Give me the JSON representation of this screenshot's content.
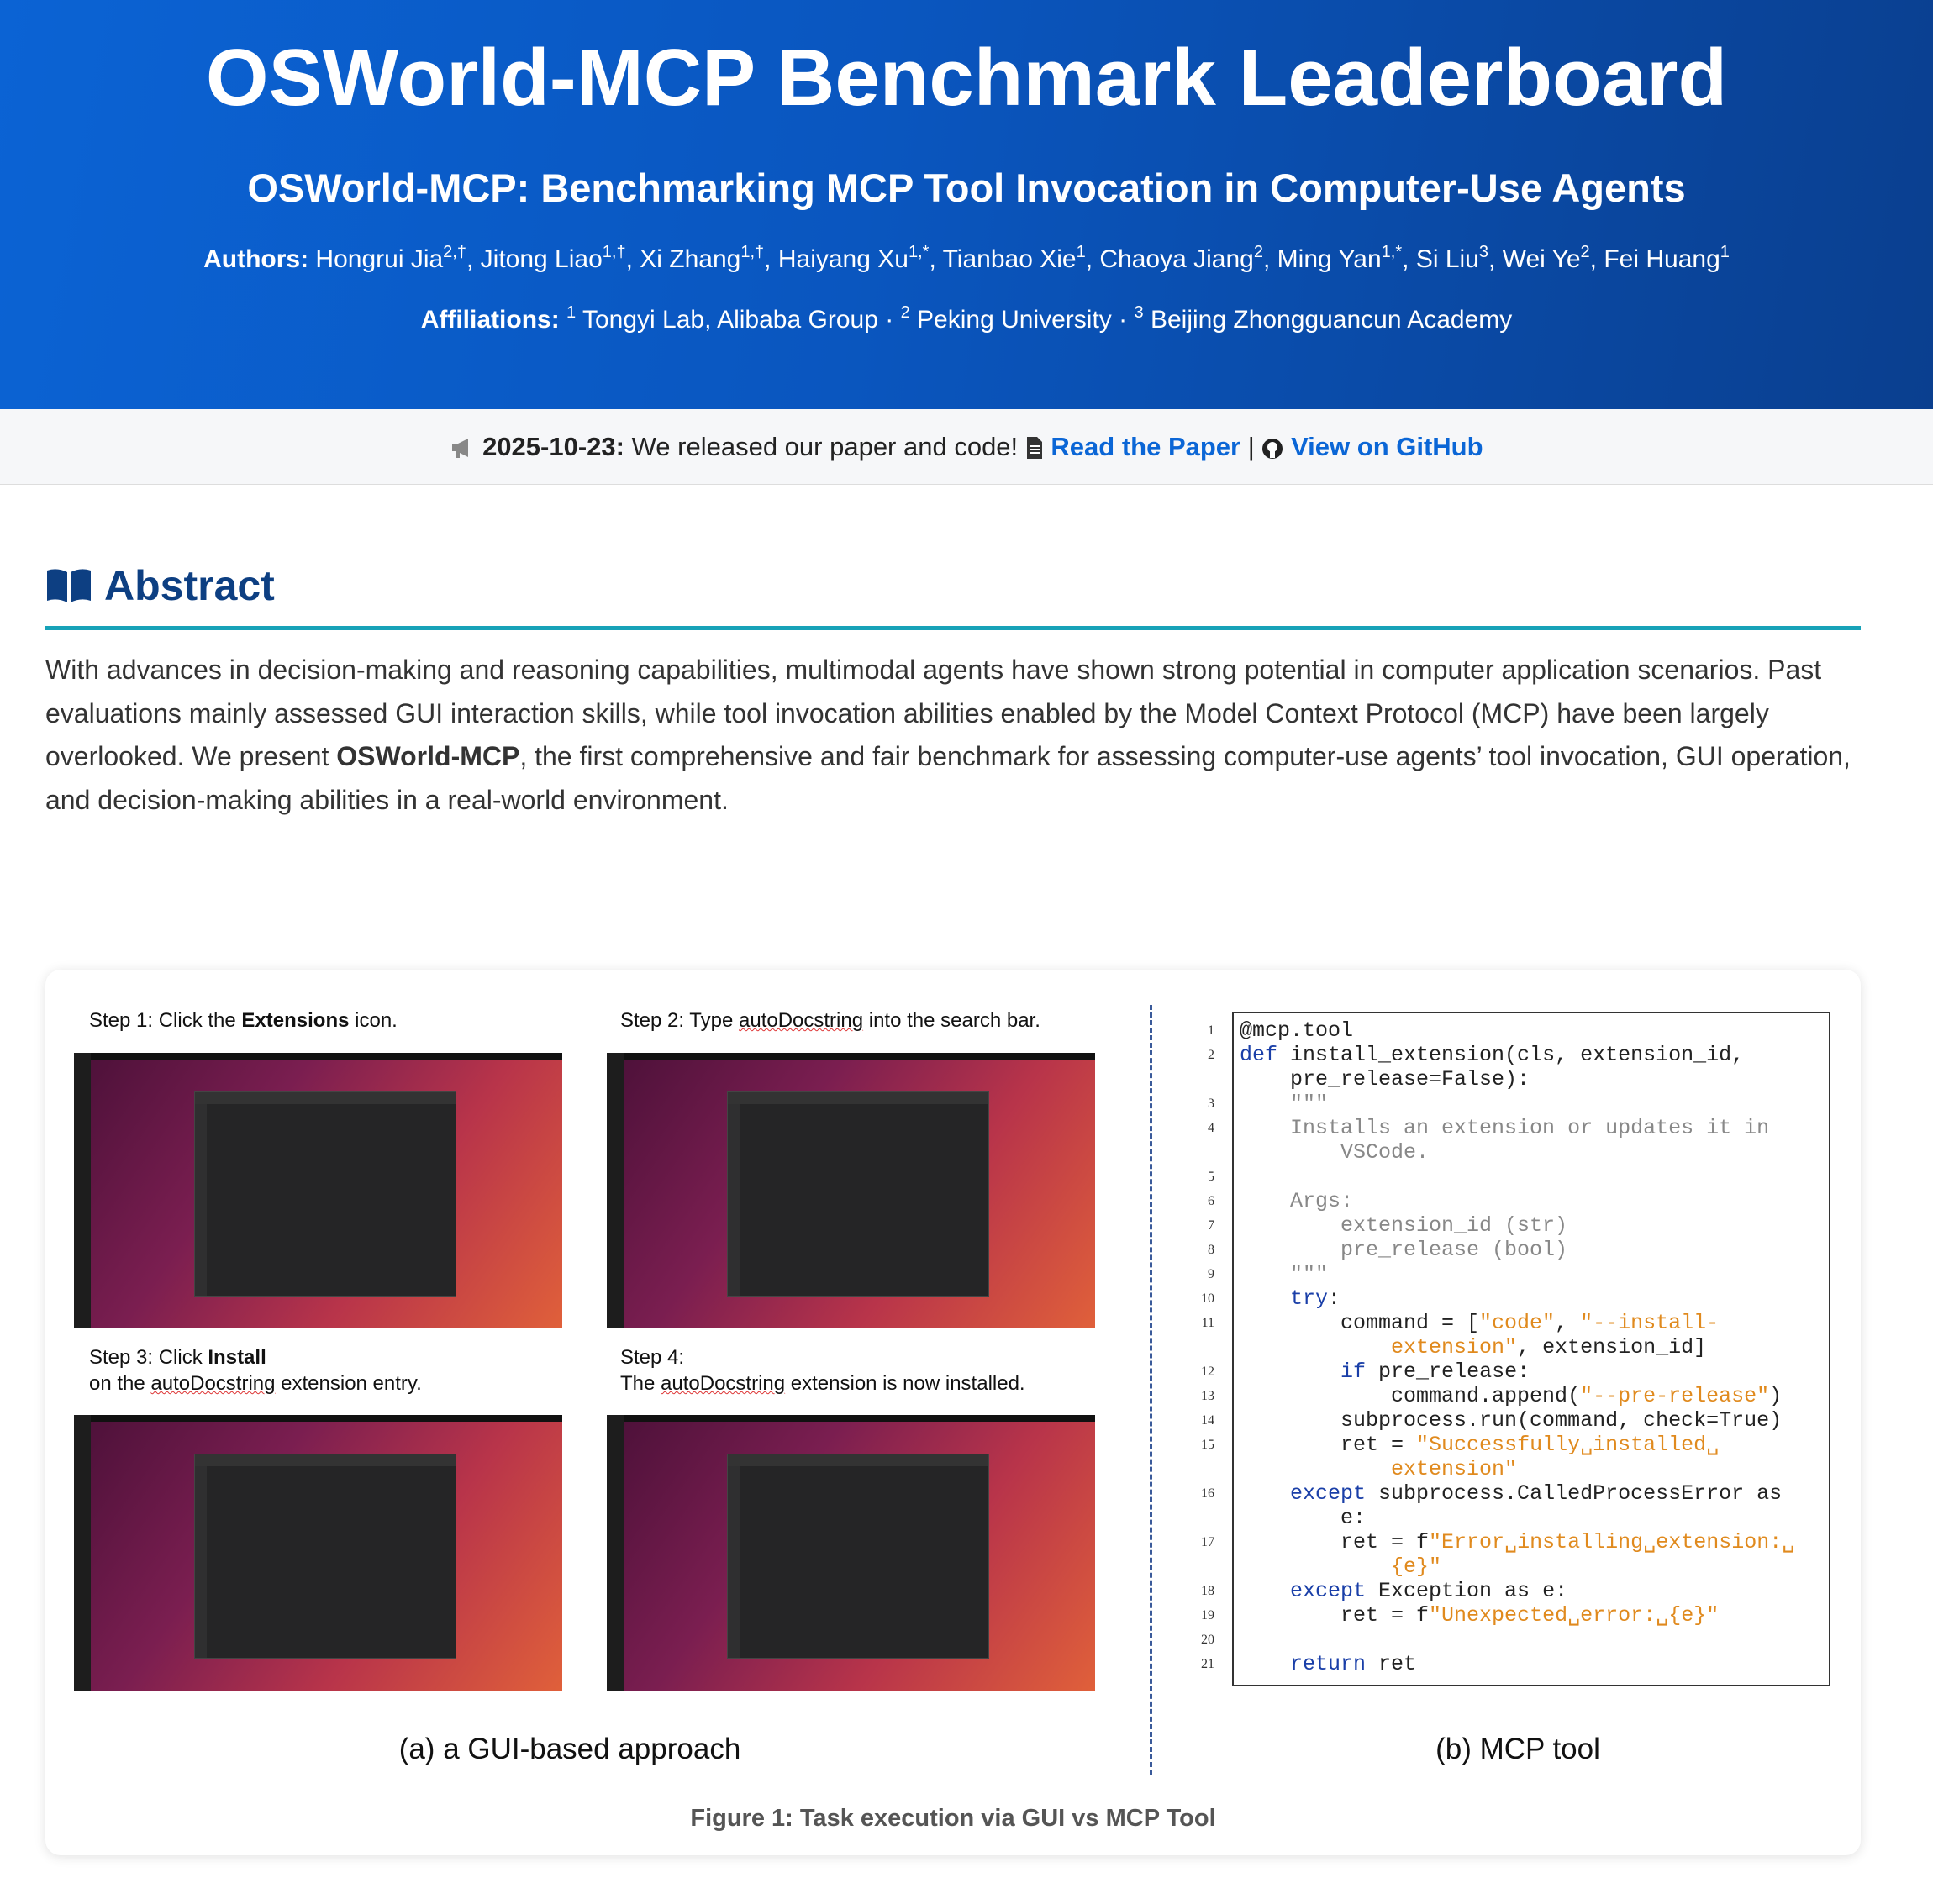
{
  "header": {
    "title": "OSWorld-MCP Benchmark Leaderboard",
    "subtitle": "OSWorld-MCP: Benchmarking MCP Tool Invocation in Computer-Use Agents",
    "authors": {
      "label": "Authors:",
      "separator": ",",
      "items": [
        {
          "name": "Hongrui Jia",
          "sup": "2,†"
        },
        {
          "name": "Jitong Liao",
          "sup": "1,†"
        },
        {
          "name": "Xi Zhang",
          "sup": "1,†"
        },
        {
          "name": "Haiyang Xu",
          "sup": "1,*"
        },
        {
          "name": "Tianbao Xie",
          "sup": "1"
        },
        {
          "name": "Chaoya Jiang",
          "sup": "2"
        },
        {
          "name": "Ming Yan",
          "sup": "1,*"
        },
        {
          "name": "Si Liu",
          "sup": "3"
        },
        {
          "name": "Wei Ye",
          "sup": "2"
        },
        {
          "name": "Fei Huang",
          "sup": "1"
        }
      ]
    },
    "affiliations": {
      "label": "Affiliations:",
      "separator": "·",
      "items": [
        {
          "sup": "1",
          "name": "Tongyi Lab, Alibaba Group"
        },
        {
          "sup": "2",
          "name": "Peking University"
        },
        {
          "sup": "3",
          "name": "Beijing Zhongguancun Academy"
        }
      ]
    }
  },
  "news": {
    "date": "2025-10-23:",
    "text": "We released our paper and code!",
    "paper_link": "Read the Paper",
    "separator": "|",
    "github_link": "View on GitHub"
  },
  "abstract": {
    "heading": "Abstract",
    "parts": [
      {
        "t": "With advances in decision-making and reasoning capabilities, multimodal agents have shown strong potential in computer application scenarios. Past evaluations mainly assessed GUI interaction skills, while tool invocation abilities enabled by the Model Context Protocol (MCP) have been largely overlooked. We present "
      },
      {
        "t": "OSWorld-MCP",
        "s": "b"
      },
      {
        "t": ", the first comprehensive and fair benchmark for assessing computer-use agents’ tool invocation, GUI operation, and decision-making abilities in a real-world environment."
      }
    ]
  },
  "figure": {
    "steps": [
      {
        "lines": [
          [
            {
              "t": "Step 1: Click the "
            },
            {
              "t": "Extensions",
              "s": "b"
            },
            {
              "t": " icon."
            }
          ]
        ]
      },
      {
        "lines": [
          [
            {
              "t": "Step 2: Type "
            },
            {
              "t": "autoDocstring",
              "s": "u"
            },
            {
              "t": " into the search bar."
            }
          ]
        ]
      },
      {
        "lines": [
          [
            {
              "t": "Step 3: Click "
            },
            {
              "t": "Install",
              "s": "b"
            }
          ],
          [
            {
              "t": "on the "
            },
            {
              "t": "autoDocstring",
              "s": "u"
            },
            {
              "t": " extension entry."
            }
          ]
        ]
      },
      {
        "lines": [
          [
            {
              "t": "Step 4:"
            }
          ],
          [
            {
              "t": "The "
            },
            {
              "t": "autoDocstring",
              "s": "u"
            },
            {
              "t": " extension is now installed."
            }
          ]
        ]
      }
    ],
    "code_rows": [
      {
        "n": 1,
        "segs": [
          {
            "t": "@mcp.tool"
          }
        ]
      },
      {
        "n": 2,
        "segs": [
          {
            "t": "def",
            "k": "kw"
          },
          {
            "t": " install_extension(cls, extension_id,"
          }
        ]
      },
      {
        "segs": [
          {
            "t": "    pre_release=False):"
          }
        ]
      },
      {
        "n": 3,
        "segs": [
          {
            "t": "    \"\"\"",
            "k": "cm"
          }
        ]
      },
      {
        "n": 4,
        "segs": [
          {
            "t": "    Installs an extension or updates it in",
            "k": "cm"
          }
        ]
      },
      {
        "segs": [
          {
            "t": "        VSCode.",
            "k": "cm"
          }
        ]
      },
      {
        "n": 5,
        "segs": []
      },
      {
        "n": 6,
        "segs": [
          {
            "t": "    Args:",
            "k": "cm"
          }
        ]
      },
      {
        "n": 7,
        "segs": [
          {
            "t": "        extension_id (str)",
            "k": "cm"
          }
        ]
      },
      {
        "n": 8,
        "segs": [
          {
            "t": "        pre_release (bool)",
            "k": "cm"
          }
        ]
      },
      {
        "n": 9,
        "segs": [
          {
            "t": "    \"\"\"",
            "k": "cm"
          }
        ]
      },
      {
        "n": 10,
        "segs": [
          {
            "t": "    "
          },
          {
            "t": "try",
            "k": "kw"
          },
          {
            "t": ":"
          }
        ]
      },
      {
        "n": 11,
        "segs": [
          {
            "t": "        command = ["
          },
          {
            "t": "\"code\"",
            "k": "str"
          },
          {
            "t": ", "
          },
          {
            "t": "\"--install-",
            "k": "str"
          }
        ]
      },
      {
        "segs": [
          {
            "t": "            extension\"",
            "k": "str"
          },
          {
            "t": ", extension_id]"
          }
        ]
      },
      {
        "n": 12,
        "segs": [
          {
            "t": "        "
          },
          {
            "t": "if",
            "k": "kw"
          },
          {
            "t": " pre_release:"
          }
        ]
      },
      {
        "n": 13,
        "segs": [
          {
            "t": "            command.append("
          },
          {
            "t": "\"--pre-release\"",
            "k": "str"
          },
          {
            "t": ")"
          }
        ]
      },
      {
        "n": 14,
        "segs": [
          {
            "t": "        subprocess.run(command, check=True)"
          }
        ]
      },
      {
        "n": 15,
        "segs": [
          {
            "t": "        ret = "
          },
          {
            "t": "\"Successfully␣installed␣",
            "k": "str"
          }
        ]
      },
      {
        "segs": [
          {
            "t": "            extension\"",
            "k": "str"
          }
        ]
      },
      {
        "n": 16,
        "segs": [
          {
            "t": "    "
          },
          {
            "t": "except",
            "k": "kw"
          },
          {
            "t": " subprocess.CalledProcessError as"
          }
        ]
      },
      {
        "segs": [
          {
            "t": "        e:"
          }
        ]
      },
      {
        "n": 17,
        "segs": [
          {
            "t": "        ret = f"
          },
          {
            "t": "\"Error␣installing␣extension:␣",
            "k": "str"
          }
        ]
      },
      {
        "segs": [
          {
            "t": "            {e}\"",
            "k": "str"
          }
        ]
      },
      {
        "n": 18,
        "segs": [
          {
            "t": "    "
          },
          {
            "t": "except",
            "k": "kw"
          },
          {
            "t": " Exception as e:"
          }
        ]
      },
      {
        "n": 19,
        "segs": [
          {
            "t": "        ret = f"
          },
          {
            "t": "\"Unexpected␣error:␣{e}\"",
            "k": "str"
          }
        ]
      },
      {
        "n": 20,
        "segs": []
      },
      {
        "n": 21,
        "segs": [
          {
            "t": "    "
          },
          {
            "t": "return",
            "k": "kw"
          },
          {
            "t": " ret"
          }
        ]
      }
    ],
    "caption_a": "(a) a GUI-based approach",
    "caption_b": "(b) MCP tool",
    "caption": "Figure 1: Task execution via GUI vs MCP Tool"
  }
}
